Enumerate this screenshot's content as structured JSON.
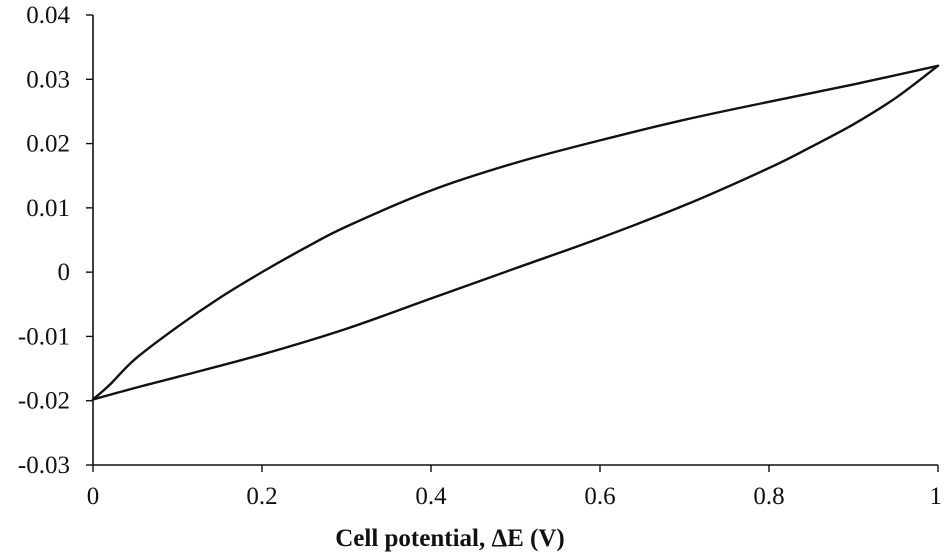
{
  "chart_data": {
    "type": "line",
    "title": "",
    "xlabel": "Cell potential, ΔE (V)",
    "ylabel": "",
    "xlim": [
      0,
      1
    ],
    "ylim": [
      -0.03,
      0.04
    ],
    "x_ticks": [
      0,
      0.2,
      0.4,
      0.6,
      0.8,
      1
    ],
    "x_tick_labels": [
      "0",
      "0.2",
      "0.4",
      "0.6",
      "0.8",
      "1"
    ],
    "y_ticks": [
      -0.03,
      -0.02,
      -0.01,
      0,
      0.01,
      0.02,
      0.03,
      0.04
    ],
    "y_tick_labels": [
      "-0.03",
      "-0.02",
      "-0.01",
      "0",
      "0.01",
      "0.02",
      "0.03",
      "0.04"
    ],
    "grid": false,
    "legend": "none",
    "line_color": "#111111",
    "series": [
      {
        "x": [
          0,
          0.02,
          0.05,
          0.1,
          0.15,
          0.2,
          0.25,
          0.3,
          0.4,
          0.5,
          0.6,
          0.7,
          0.8,
          0.9,
          1.0
        ],
        "y": [
          -0.0198,
          -0.0175,
          -0.0135,
          -0.0085,
          -0.004,
          0.0,
          0.0037,
          0.0071,
          0.0127,
          0.017,
          0.0205,
          0.0237,
          0.0265,
          0.0292,
          0.0321
        ]
      },
      {
        "x": [
          1.0,
          0.95,
          0.9,
          0.85,
          0.8,
          0.7,
          0.6,
          0.5,
          0.4,
          0.3,
          0.2,
          0.1,
          0.05,
          0
        ],
        "y": [
          0.0321,
          0.0271,
          0.023,
          0.0195,
          0.0162,
          0.0104,
          0.0053,
          0.0006,
          -0.0041,
          -0.0088,
          -0.0128,
          -0.0163,
          -0.018,
          -0.0198
        ]
      }
    ]
  }
}
